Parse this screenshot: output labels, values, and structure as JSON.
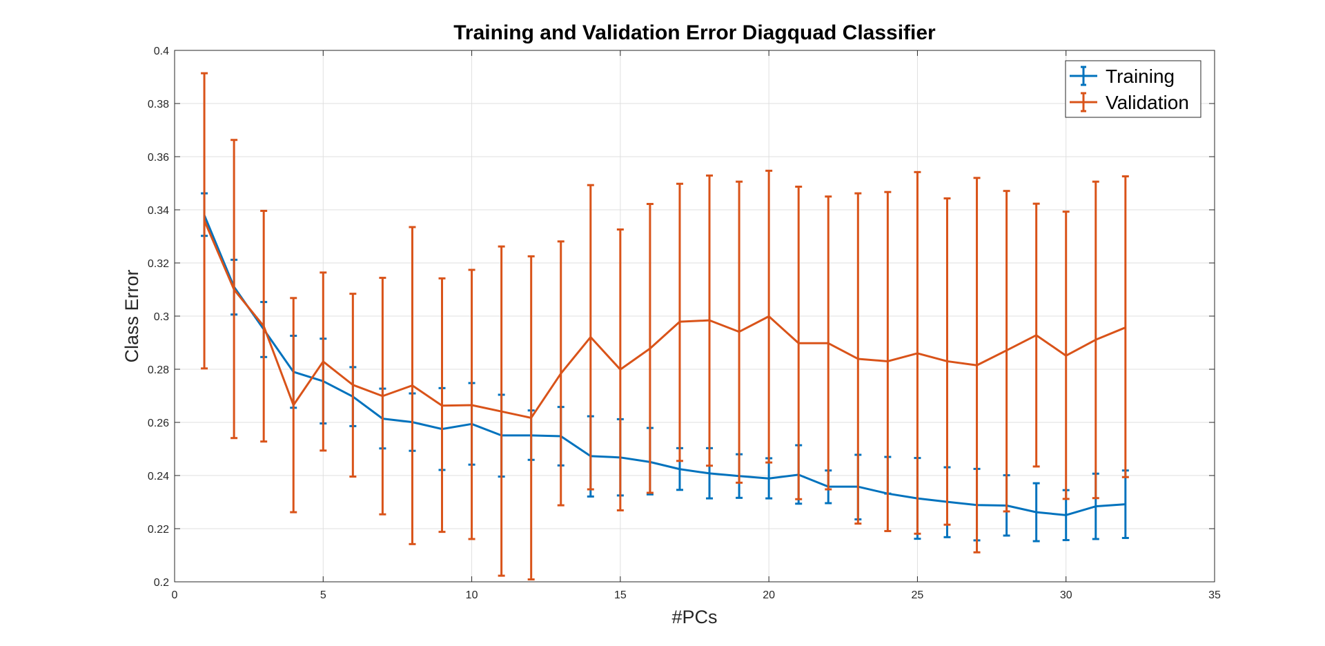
{
  "chart_data": {
    "type": "line",
    "title": "Training and Validation Error Diagquad Classifier",
    "xlabel": "#PCs",
    "ylabel": "Class Error",
    "xlim": [
      0,
      35
    ],
    "ylim": [
      0.2,
      0.4
    ],
    "xticks": [
      0,
      5,
      10,
      15,
      20,
      25,
      30,
      35
    ],
    "yticks": [
      0.2,
      0.22,
      0.24,
      0.26,
      0.28,
      0.3,
      0.32,
      0.34,
      0.36,
      0.38,
      0.4
    ],
    "xtick_labels": [
      "0",
      "5",
      "10",
      "15",
      "20",
      "25",
      "30",
      "35"
    ],
    "ytick_labels": [
      "0.2",
      "0.22",
      "0.24",
      "0.26",
      "0.28",
      "0.3",
      "0.32",
      "0.34",
      "0.36",
      "0.38",
      "0.4"
    ],
    "grid": true,
    "legend_position": "top-right",
    "x": [
      1,
      2,
      3,
      4,
      5,
      6,
      7,
      8,
      9,
      10,
      11,
      12,
      13,
      14,
      15,
      16,
      17,
      18,
      19,
      20,
      21,
      22,
      23,
      24,
      25,
      26,
      27,
      28,
      29,
      30,
      31,
      32
    ],
    "series": [
      {
        "name": "Training",
        "color": "#0072BD",
        "values": [
          0.338,
          0.311,
          0.295,
          0.279,
          0.2755,
          0.2697,
          0.2614,
          0.2601,
          0.2575,
          0.2594,
          0.2551,
          0.2551,
          0.2548,
          0.2473,
          0.2468,
          0.2451,
          0.2424,
          0.2408,
          0.2398,
          0.2389,
          0.2403,
          0.2358,
          0.2358,
          0.2332,
          0.2314,
          0.2301,
          0.2289,
          0.2287,
          0.2262,
          0.2251,
          0.2284,
          0.2292
        ],
        "err_lower": [
          0.3302,
          0.3006,
          0.2846,
          0.2655,
          0.2596,
          0.2586,
          0.2502,
          0.2493,
          0.2421,
          0.2441,
          0.2396,
          0.2459,
          0.2438,
          0.2321,
          0.2325,
          0.2329,
          0.2346,
          0.2314,
          0.2316,
          0.2314,
          0.2294,
          0.2296,
          0.2235,
          0.2332,
          0.2162,
          0.2168,
          0.2156,
          0.2174,
          0.2153,
          0.2157,
          0.2161,
          0.2165
        ],
        "err_upper": [
          0.3462,
          0.3212,
          0.3053,
          0.2926,
          0.2915,
          0.2808,
          0.2727,
          0.2709,
          0.2729,
          0.2748,
          0.2704,
          0.2645,
          0.2658,
          0.2623,
          0.2612,
          0.2579,
          0.2503,
          0.2503,
          0.248,
          0.2465,
          0.2514,
          0.2419,
          0.2478,
          0.247,
          0.2466,
          0.2431,
          0.2425,
          0.2401,
          0.2371,
          0.2345,
          0.2407,
          0.2419
        ]
      },
      {
        "name": "Validation",
        "color": "#D95319",
        "values": [
          0.336,
          0.31,
          0.2962,
          0.2665,
          0.2829,
          0.2741,
          0.2699,
          0.2739,
          0.2663,
          0.2665,
          0.2641,
          0.2617,
          0.2784,
          0.2921,
          0.2799,
          0.2878,
          0.2979,
          0.2984,
          0.2941,
          0.2999,
          0.2898,
          0.2898,
          0.2839,
          0.283,
          0.286,
          0.283,
          0.2815,
          0.2871,
          0.2928,
          0.2851,
          0.2911,
          0.2957
        ],
        "err_lower": [
          0.2803,
          0.2541,
          0.2528,
          0.2262,
          0.2494,
          0.2396,
          0.2254,
          0.2142,
          0.2188,
          0.2161,
          0.2023,
          0.2009,
          0.2288,
          0.2348,
          0.2269,
          0.2335,
          0.2455,
          0.2437,
          0.2373,
          0.2449,
          0.2311,
          0.2348,
          0.2219,
          0.2191,
          0.2181,
          0.2215,
          0.2111,
          0.2265,
          0.2434,
          0.2312,
          0.2315,
          0.2394
        ],
        "err_upper": [
          0.3914,
          0.3663,
          0.3396,
          0.3068,
          0.3164,
          0.3084,
          0.3144,
          0.3335,
          0.3142,
          0.3174,
          0.3262,
          0.3225,
          0.3281,
          0.3493,
          0.3326,
          0.3422,
          0.3498,
          0.3529,
          0.3506,
          0.3547,
          0.3487,
          0.345,
          0.3462,
          0.3467,
          0.3542,
          0.3443,
          0.352,
          0.3471,
          0.3423,
          0.3393,
          0.3506,
          0.3526
        ]
      }
    ]
  }
}
